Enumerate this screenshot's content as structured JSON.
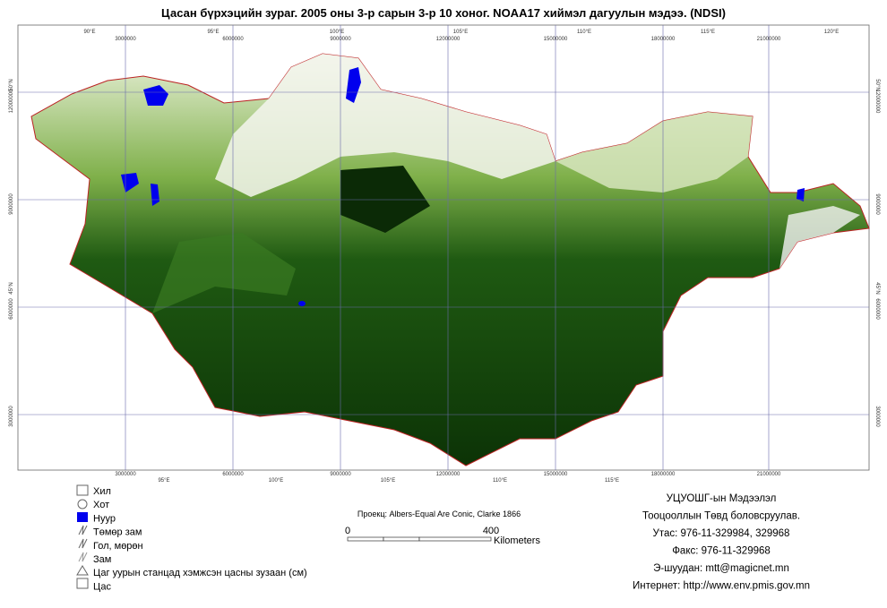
{
  "title": "Цасан бүрхэцийн зураг. 2005 оны 3-р сарын 3-р 10 хоног. NOAA17 хиймэл дагуулын мэдээ. (NDSI)",
  "map": {
    "grid_labels": {
      "top_degrees": [
        "90°E",
        "95°E",
        "100°E",
        "105°E",
        "110°E",
        "115°E",
        "120°E"
      ],
      "top_meters": [
        "3000000",
        "6000000",
        "9000000",
        "12000000",
        "15000000",
        "18000000",
        "21000000"
      ],
      "bottom_degrees": [
        "95°E",
        "100°E",
        "105°E",
        "110°E",
        "115°E"
      ],
      "bottom_meters": [
        "3000000",
        "6000000",
        "9000000",
        "12000000",
        "15000000",
        "18000000",
        "21000000"
      ],
      "left": [
        "50°N",
        "12000000",
        "9000000",
        "45°N",
        "6000000",
        "3000000"
      ],
      "right": [
        "50°N",
        "12000000",
        "9000000",
        "45°N",
        "6000000",
        "3000000"
      ]
    }
  },
  "legend": [
    "Хил",
    "Хот",
    "Нуур",
    "Төмөр зам",
    "Гол, мөрөн",
    "Зам",
    "Цаг уурын станцад хэмжсэн цасны зузаан (см)",
    "Цас"
  ],
  "projection": "Проекц: Albers-Equal Are Conic, Clarke 1866",
  "scale": {
    "start": 0,
    "end": 400,
    "unit": "Kilometers"
  },
  "credits": [
    "УЦУОШГ-ын Мэдээлэл",
    "Тооцооллын Төвд боловсруулав.",
    "Утас: 976-11-329984, 329968",
    "Факс: 976-11-329968",
    "Э-шуудан: mtt@magicnet.mn",
    "Интернет: http://www.env.pmis.gov.mn"
  ]
}
